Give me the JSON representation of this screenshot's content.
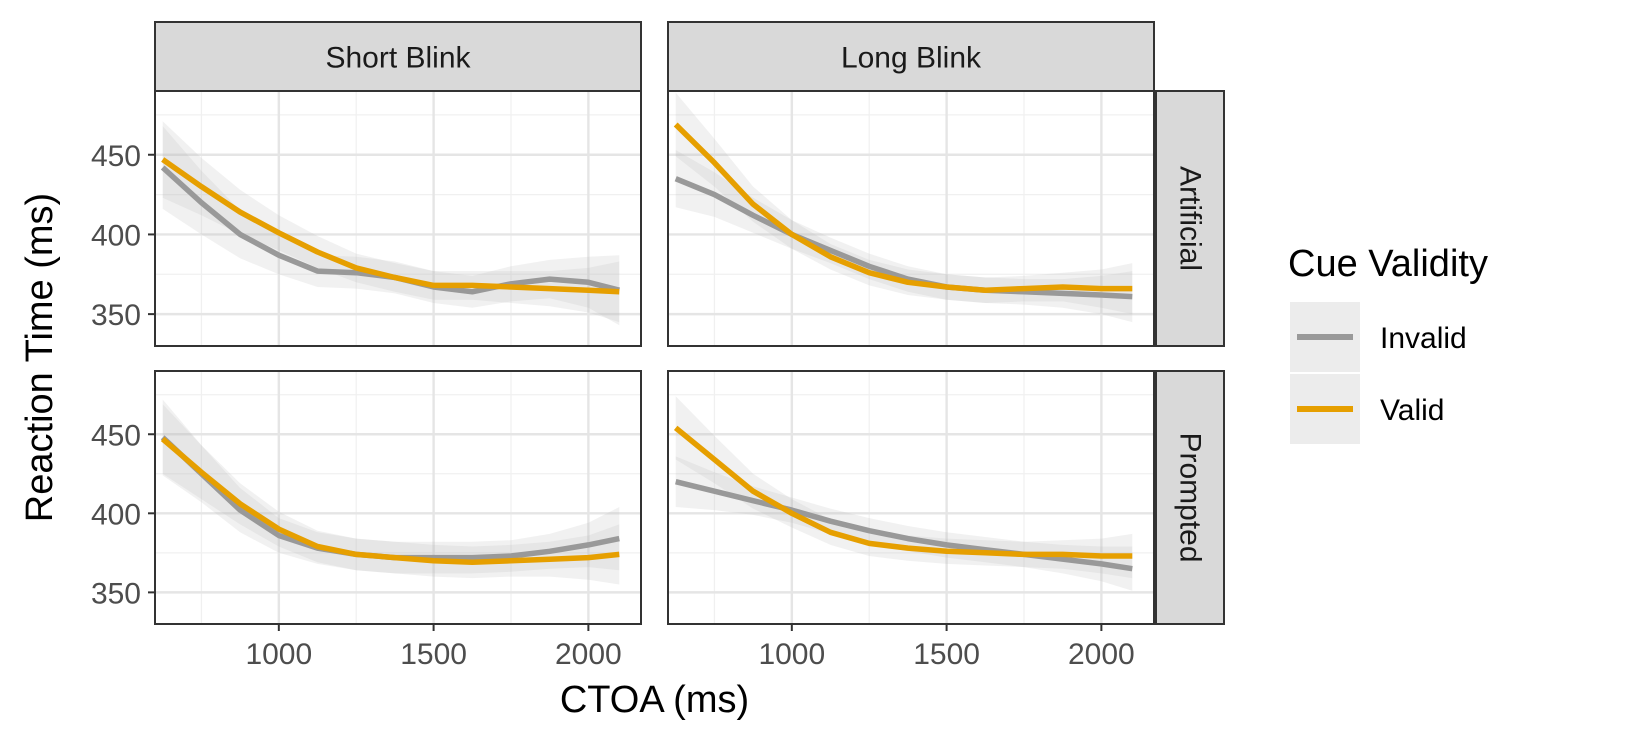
{
  "chart_data": {
    "type": "line",
    "title": "",
    "xlabel": "CTOA (ms)",
    "ylabel": "Reaction Time (ms)",
    "xlim": [
      600,
      2170
    ],
    "ylim": [
      330,
      490
    ],
    "x_ticks": [
      1000,
      1500,
      2000
    ],
    "x_minor": [
      750,
      1250,
      1750
    ],
    "y_ticks": [
      350,
      400,
      450
    ],
    "y_minor": [
      375,
      425,
      475
    ],
    "grid": true,
    "confidence_bands": true,
    "facet_columns": [
      "Short Blink",
      "Long Blink"
    ],
    "facet_rows": [
      "Artificial",
      "Prompted"
    ],
    "legend": {
      "title": "Cue Validity",
      "position": "right",
      "entries": [
        {
          "label": "Invalid",
          "color": "#999999"
        },
        {
          "label": "Valid",
          "color": "#E69F00"
        }
      ]
    },
    "panels": [
      {
        "column": "Short Blink",
        "row": "Artificial",
        "series": [
          {
            "name": "Invalid",
            "x": [
              625,
              750,
              875,
              1000,
              1125,
              1250,
              1375,
              1500,
              1625,
              1750,
              1875,
              2000,
              2100
            ],
            "y": [
              442,
              420,
              400,
              387,
              377,
              376,
              373,
              367,
              364,
              369,
              372,
              370,
              365
            ],
            "band": [
              26,
              20,
              15,
              12,
              10,
              10,
              10,
              10,
              10,
              11,
              12,
              16,
              22
            ]
          },
          {
            "name": "Valid",
            "x": [
              625,
              750,
              875,
              1000,
              1125,
              1250,
              1375,
              1500,
              1625,
              1750,
              1875,
              2000,
              2100
            ],
            "y": [
              447,
              430,
              414,
              401,
              389,
              379,
              373,
              368,
              368,
              367,
              366,
              365,
              364
            ],
            "band": [
              24,
              18,
              14,
              11,
              10,
              9,
              9,
              9,
              9,
              10,
              11,
              14,
              19
            ]
          }
        ]
      },
      {
        "column": "Long Blink",
        "row": "Artificial",
        "series": [
          {
            "name": "Invalid",
            "x": [
              625,
              750,
              875,
              1000,
              1125,
              1250,
              1375,
              1500,
              1625,
              1750,
              1875,
              2000,
              2100
            ],
            "y": [
              435,
              425,
              412,
              400,
              390,
              380,
              372,
              367,
              365,
              364,
              363,
              362,
              361
            ],
            "band": [
              18,
              14,
              11,
              9,
              8,
              8,
              8,
              8,
              8,
              8,
              9,
              12,
              16
            ]
          },
          {
            "name": "Valid",
            "x": [
              625,
              750,
              875,
              1000,
              1125,
              1250,
              1375,
              1500,
              1625,
              1750,
              1875,
              2000,
              2100
            ],
            "y": [
              469,
              445,
              419,
              400,
              386,
              376,
              370,
              367,
              365,
              366,
              367,
              366,
              366
            ],
            "band": [
              20,
              15,
              11,
              9,
              8,
              8,
              8,
              8,
              8,
              8,
              9,
              12,
              16
            ]
          }
        ]
      },
      {
        "column": "Short Blink",
        "row": "Prompted",
        "series": [
          {
            "name": "Invalid",
            "x": [
              625,
              750,
              875,
              1000,
              1125,
              1250,
              1375,
              1500,
              1625,
              1750,
              1875,
              2000,
              2100
            ],
            "y": [
              448,
              425,
              402,
              386,
              378,
              374,
              372,
              372,
              372,
              373,
              376,
              380,
              384
            ],
            "band": [
              24,
              18,
              14,
              11,
              10,
              10,
              10,
              10,
              10,
              10,
              11,
              14,
              20
            ]
          },
          {
            "name": "Valid",
            "x": [
              625,
              750,
              875,
              1000,
              1125,
              1250,
              1375,
              1500,
              1625,
              1750,
              1875,
              2000,
              2100
            ],
            "y": [
              447,
              426,
              406,
              390,
              379,
              374,
              372,
              370,
              369,
              370,
              371,
              372,
              374
            ],
            "band": [
              22,
              17,
              13,
              11,
              10,
              10,
              10,
              10,
              10,
              10,
              11,
              14,
              19
            ]
          }
        ]
      },
      {
        "column": "Long Blink",
        "row": "Prompted",
        "series": [
          {
            "name": "Invalid",
            "x": [
              625,
              750,
              875,
              1000,
              1125,
              1250,
              1375,
              1500,
              1625,
              1750,
              1875,
              2000,
              2100
            ],
            "y": [
              420,
              414,
              408,
              402,
              395,
              389,
              384,
              380,
              377,
              374,
              371,
              368,
              365
            ],
            "band": [
              16,
              12,
              9,
              8,
              8,
              8,
              8,
              8,
              8,
              8,
              9,
              11,
              14
            ]
          },
          {
            "name": "Valid",
            "x": [
              625,
              750,
              875,
              1000,
              1125,
              1250,
              1375,
              1500,
              1625,
              1750,
              1875,
              2000,
              2100
            ],
            "y": [
              454,
              434,
              414,
              400,
              388,
              381,
              378,
              376,
              375,
              374,
              374,
              373,
              373
            ],
            "band": [
              20,
              15,
              11,
              9,
              8,
              8,
              8,
              8,
              8,
              8,
              9,
              11,
              14
            ]
          }
        ]
      }
    ]
  }
}
